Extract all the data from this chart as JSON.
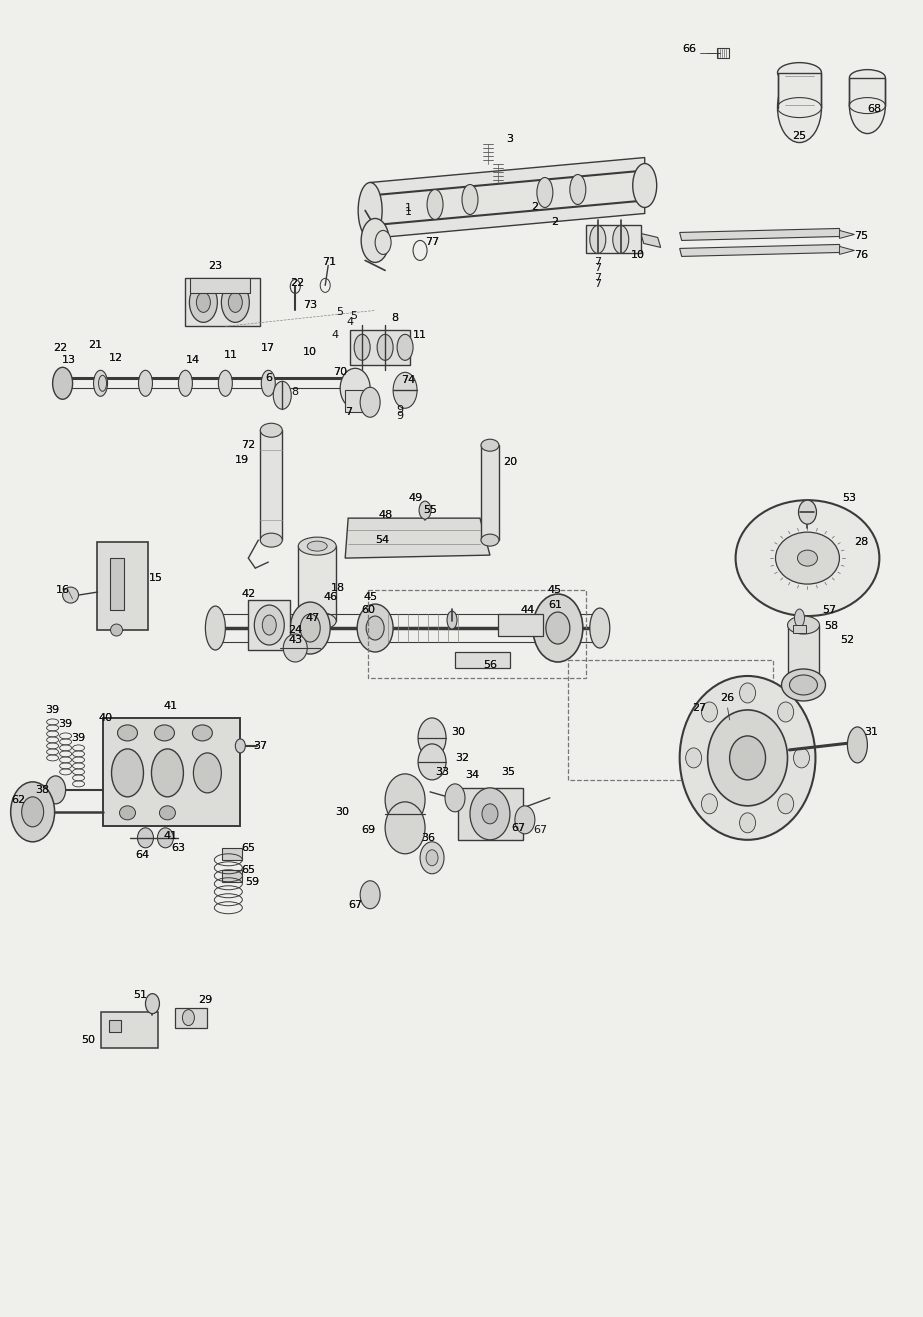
{
  "bg_color": "#efefec",
  "line_color": "#3a3a3a",
  "text_color": "#111111",
  "fig_width": 9.23,
  "fig_height": 13.17,
  "dpi": 100
}
